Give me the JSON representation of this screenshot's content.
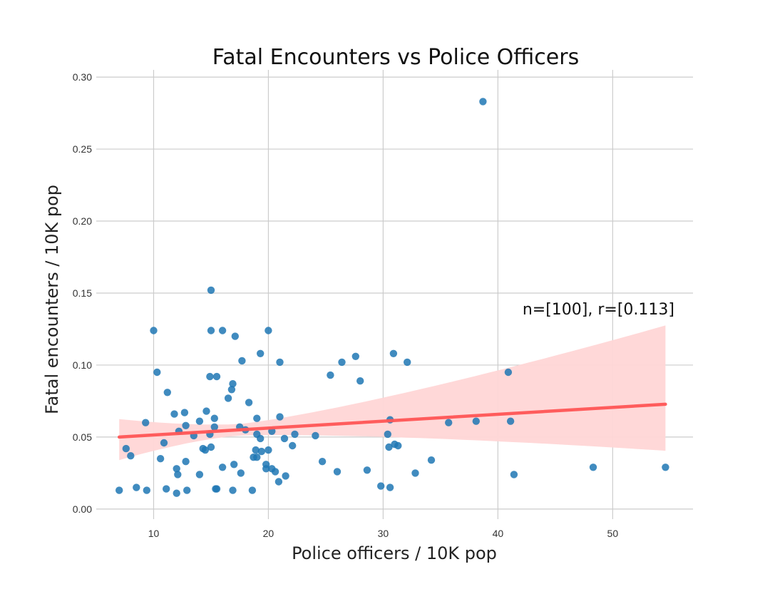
{
  "chart_data": {
    "type": "scatter",
    "title": "Fatal Encounters vs Police Officers",
    "xlabel": "Police officers / 10K pop",
    "ylabel": "Fatal encounters / 10K pop",
    "xlim": [
      5,
      57
    ],
    "ylim": [
      -0.007,
      0.305
    ],
    "x_ticks": [
      10,
      20,
      30,
      40,
      50
    ],
    "y_ticks": [
      0.0,
      0.05,
      0.1,
      0.15,
      0.2,
      0.25,
      0.3
    ],
    "x_tick_labels": [
      "10",
      "20",
      "30",
      "40",
      "50"
    ],
    "y_tick_labels": [
      "0.00",
      "0.05",
      "0.10",
      "0.15",
      "0.20",
      "0.25",
      "0.30"
    ],
    "grid": true,
    "annotation": "n=[100], r=[0.113]",
    "colors": {
      "points": "#1f77b4",
      "regression_line": "#ff5555",
      "confidence_band": "#ffd6d6",
      "grid": "#cccccc"
    },
    "regression": {
      "x": [
        7.0,
        54.6
      ],
      "y": [
        0.05,
        0.0728
      ],
      "band_upper": [
        0.0625,
        0.1275
      ],
      "band_lower": [
        0.034,
        0.0405
      ]
    },
    "points": [
      [
        7.0,
        0.013
      ],
      [
        7.6,
        0.042
      ],
      [
        8.0,
        0.037
      ],
      [
        8.5,
        0.015
      ],
      [
        9.3,
        0.06
      ],
      [
        9.4,
        0.013
      ],
      [
        10.0,
        0.124
      ],
      [
        10.3,
        0.095
      ],
      [
        10.6,
        0.035
      ],
      [
        10.9,
        0.046
      ],
      [
        11.1,
        0.014
      ],
      [
        11.2,
        0.081
      ],
      [
        11.8,
        0.066
      ],
      [
        12.0,
        0.011
      ],
      [
        12.0,
        0.028
      ],
      [
        12.1,
        0.024
      ],
      [
        12.2,
        0.054
      ],
      [
        12.7,
        0.067
      ],
      [
        12.8,
        0.058
      ],
      [
        12.8,
        0.033
      ],
      [
        12.9,
        0.013
      ],
      [
        13.5,
        0.051
      ],
      [
        14.0,
        0.061
      ],
      [
        14.0,
        0.024
      ],
      [
        14.3,
        0.042
      ],
      [
        14.5,
        0.041
      ],
      [
        14.6,
        0.068
      ],
      [
        14.9,
        0.052
      ],
      [
        14.9,
        0.092
      ],
      [
        15.0,
        0.152
      ],
      [
        15.0,
        0.043
      ],
      [
        15.0,
        0.124
      ],
      [
        15.3,
        0.063
      ],
      [
        15.3,
        0.057
      ],
      [
        15.4,
        0.014
      ],
      [
        15.5,
        0.014
      ],
      [
        15.5,
        0.092
      ],
      [
        16.0,
        0.124
      ],
      [
        16.0,
        0.029
      ],
      [
        16.5,
        0.077
      ],
      [
        16.8,
        0.083
      ],
      [
        16.9,
        0.087
      ],
      [
        16.9,
        0.013
      ],
      [
        17.0,
        0.031
      ],
      [
        17.1,
        0.12
      ],
      [
        17.5,
        0.057
      ],
      [
        17.6,
        0.025
      ],
      [
        17.7,
        0.103
      ],
      [
        18.0,
        0.055
      ],
      [
        18.3,
        0.074
      ],
      [
        18.6,
        0.013
      ],
      [
        18.7,
        0.036
      ],
      [
        18.9,
        0.041
      ],
      [
        19.0,
        0.036
      ],
      [
        19.0,
        0.052
      ],
      [
        19.0,
        0.063
      ],
      [
        19.3,
        0.049
      ],
      [
        19.3,
        0.108
      ],
      [
        19.4,
        0.04
      ],
      [
        19.8,
        0.031
      ],
      [
        19.8,
        0.028
      ],
      [
        20.0,
        0.124
      ],
      [
        20.0,
        0.041
      ],
      [
        20.3,
        0.054
      ],
      [
        20.3,
        0.028
      ],
      [
        20.6,
        0.026
      ],
      [
        20.9,
        0.019
      ],
      [
        21.0,
        0.064
      ],
      [
        21.0,
        0.102
      ],
      [
        21.4,
        0.049
      ],
      [
        21.5,
        0.023
      ],
      [
        22.1,
        0.044
      ],
      [
        22.3,
        0.052
      ],
      [
        24.1,
        0.051
      ],
      [
        24.7,
        0.033
      ],
      [
        25.4,
        0.093
      ],
      [
        26.0,
        0.026
      ],
      [
        26.4,
        0.102
      ],
      [
        27.6,
        0.106
      ],
      [
        28.0,
        0.089
      ],
      [
        28.6,
        0.027
      ],
      [
        29.8,
        0.016
      ],
      [
        30.4,
        0.052
      ],
      [
        30.5,
        0.043
      ],
      [
        30.6,
        0.015
      ],
      [
        30.6,
        0.062
      ],
      [
        30.9,
        0.108
      ],
      [
        31.0,
        0.045
      ],
      [
        31.3,
        0.044
      ],
      [
        32.1,
        0.102
      ],
      [
        32.8,
        0.025
      ],
      [
        34.2,
        0.034
      ],
      [
        35.7,
        0.06
      ],
      [
        38.1,
        0.061
      ],
      [
        38.7,
        0.283
      ],
      [
        40.9,
        0.095
      ],
      [
        41.1,
        0.061
      ],
      [
        41.4,
        0.024
      ],
      [
        48.3,
        0.029
      ],
      [
        54.6,
        0.029
      ]
    ]
  }
}
